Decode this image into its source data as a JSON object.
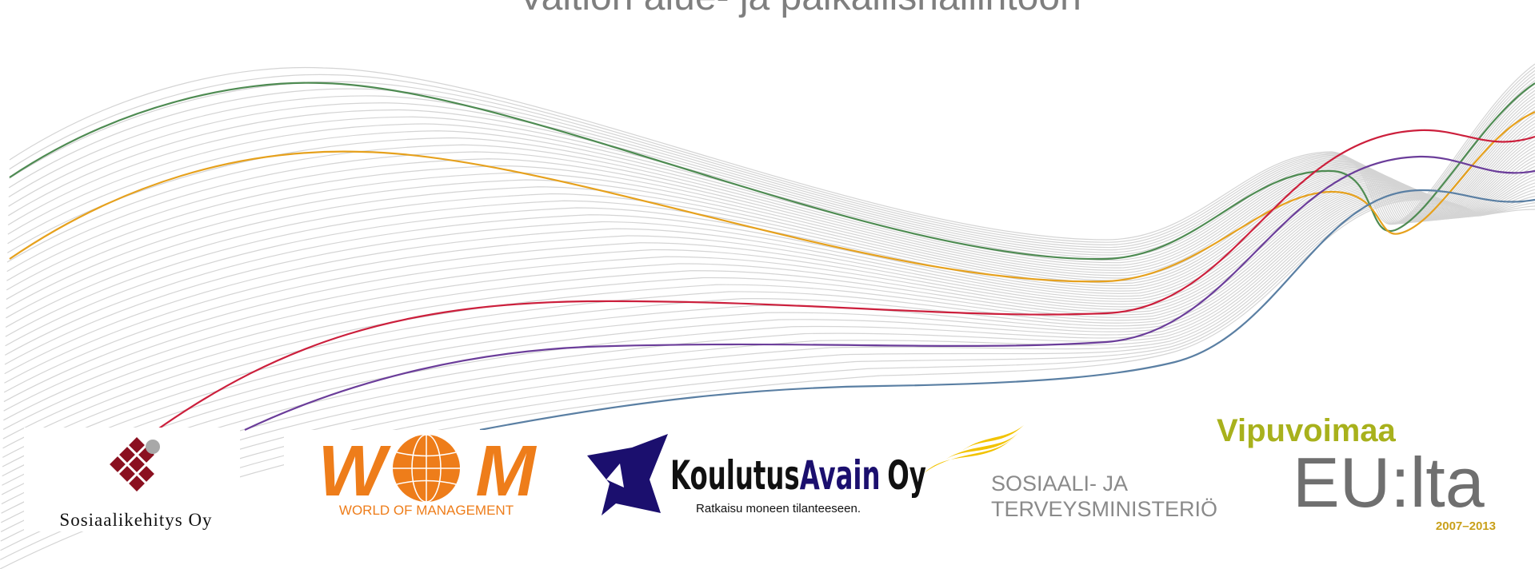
{
  "title": "Valtion alue- ja paikallishallintoon",
  "logos": {
    "sosiaalikehitys": "Sosiaalikehitys Oy",
    "wom": {
      "letters": [
        "W",
        "M"
      ],
      "subtitle": "WORLD OF MANAGEMENT"
    },
    "koulutusavain": {
      "name": [
        "Koulutus",
        "Avain",
        "Oy"
      ],
      "tagline": "Ratkaisu moneen tilanteeseen."
    },
    "stm": [
      "SOSIAALI- JA",
      "TERVEYSMINISTERIÖ"
    ],
    "vipuvoimaa": {
      "name": "Vipuvoimaa",
      "eu": "EU:lta",
      "years": "2007–2013"
    }
  }
}
